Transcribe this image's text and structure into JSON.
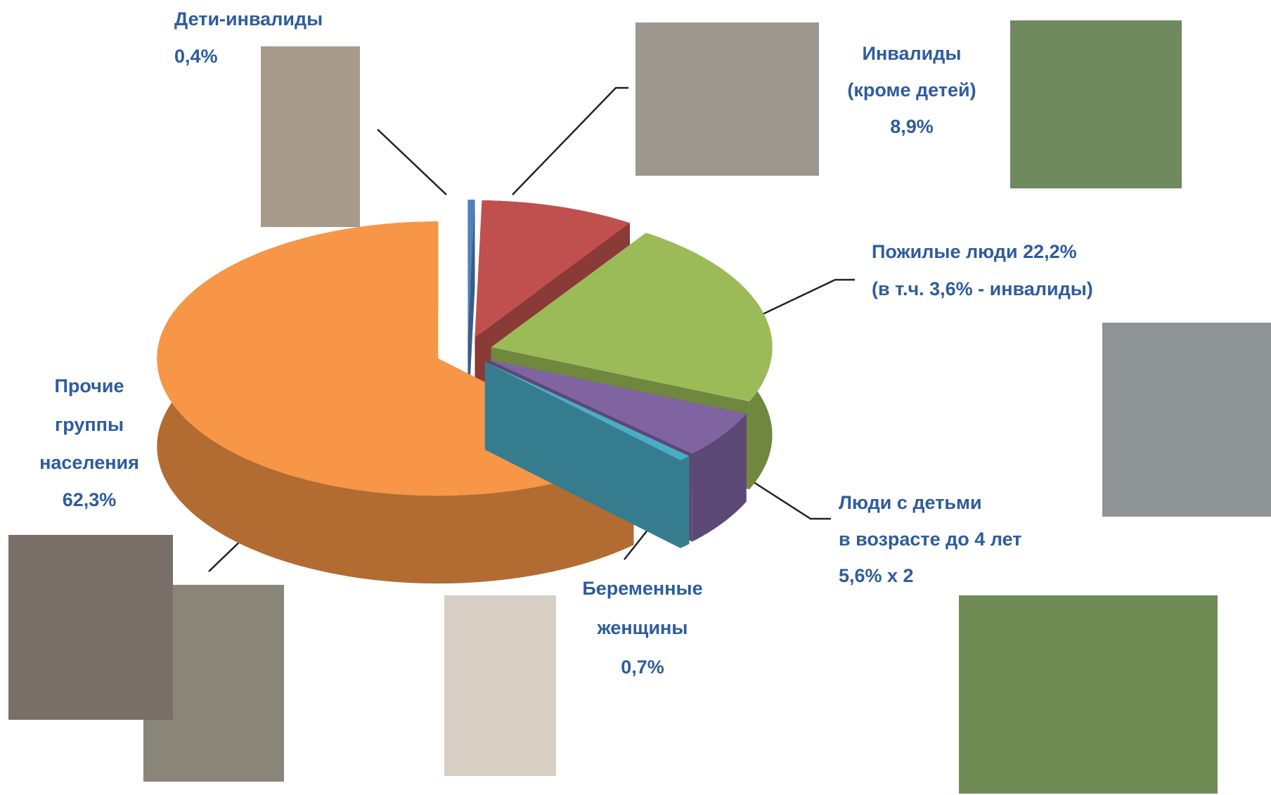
{
  "chart_data": {
    "type": "pie3d",
    "categories": [
      [
        "Дети-инвалиды"
      ],
      [
        "Инвалиды",
        "(кроме детей)"
      ],
      [
        "Пожилые люди"
      ],
      [
        "Люди с детьми",
        "в возрасте до 4 лет"
      ],
      [
        "Беременные",
        "женщины"
      ],
      [
        "Прочие",
        "группы",
        "населения"
      ]
    ],
    "values": [
      0.4,
      8.9,
      22.2,
      5.6,
      0.7,
      62.3
    ],
    "value_labels": [
      "0,4%",
      "8,9%",
      "22,2%",
      "5,6% x 2",
      "0,7%",
      "62,3%"
    ],
    "colors": [
      "#4f81bd",
      "#c0504d",
      "#9bbb59",
      "#8064a2",
      "#4bacc6",
      "#f79646"
    ],
    "annotation": "(в т.ч. 3,6% - инвалиды)"
  }
}
